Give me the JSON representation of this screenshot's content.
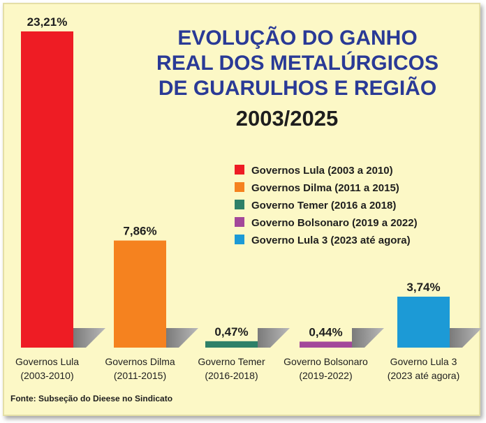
{
  "chart_data": {
    "type": "bar",
    "title_lines": [
      "EVOLUÇÃO DO GANHO",
      "REAL DOS METALÚRGICOS",
      "DE GUARULHOS E REGIÃO"
    ],
    "subtitle": "2003/2025",
    "categories": [
      {
        "line1": "Governos Lula",
        "line2": "(2003-2010)"
      },
      {
        "line1": "Governos Dilma",
        "line2": "(2011-2015)"
      },
      {
        "line1": "Governo Temer",
        "line2": "(2016-2018)"
      },
      {
        "line1": "Governo Bolsonaro",
        "line2": "(2019-2022)"
      },
      {
        "line1": "Governo Lula 3",
        "line2": "(2023 até agora)"
      }
    ],
    "values": [
      23.21,
      7.86,
      0.47,
      0.44,
      3.74
    ],
    "value_labels": [
      "23,21%",
      "7,86%",
      "0,47%",
      "0,44%",
      "3,74%"
    ],
    "colors": [
      "#ee1c24",
      "#f5821f",
      "#2e8068",
      "#a3489a",
      "#1c9ad6"
    ],
    "legend": [
      "Governos Lula (2003 a 2010)",
      "Governos Dilma (2011 a 2015)",
      "Governo Temer (2016 a 2018)",
      "Governo Bolsonaro (2019 a 2022)",
      "Governo Lula 3 (2023 até agora)"
    ],
    "ylim": [
      0,
      23.21
    ],
    "grid": false,
    "legend_position": "right"
  },
  "source": "Fonte: Subseção do Dieese no Sindicato"
}
